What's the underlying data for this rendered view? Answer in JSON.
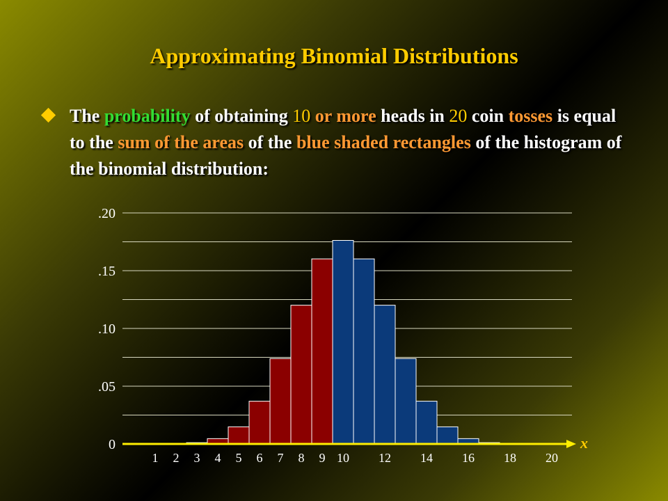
{
  "title": "Approximating Binomial Distributions",
  "bullet": [
    {
      "text": "The ",
      "style": "white"
    },
    {
      "text": "probability",
      "style": "green"
    },
    {
      "text": " of obtaining ",
      "style": "white"
    },
    {
      "text": "10",
      "style": "num"
    },
    {
      "text": " ",
      "style": "white"
    },
    {
      "text": "or more",
      "style": "orange"
    },
    {
      "text": " heads in ",
      "style": "white"
    },
    {
      "text": "20",
      "style": "num"
    },
    {
      "text": " coin ",
      "style": "white"
    },
    {
      "text": "tosses",
      "style": "orange"
    },
    {
      "text": " is equal to the ",
      "style": "white"
    },
    {
      "text": "sum of the areas",
      "style": "orange"
    },
    {
      "text": " of the ",
      "style": "white"
    },
    {
      "text": "blue shaded rectangles",
      "style": "orange"
    },
    {
      "text": " of the histogram of the binomial distribution:",
      "style": "white"
    }
  ],
  "colors": {
    "title": "#ffcc00",
    "grid": "#d8d8c0",
    "axis": "#ffee00",
    "bar_red": "#8b0000",
    "bar_blue": "#0b3a7a",
    "bar_edge": "#ffffff"
  },
  "chart_data": {
    "type": "bar",
    "title": "",
    "xlabel": "x",
    "ylabel": "",
    "ylim": [
      0,
      0.2
    ],
    "yticks": [
      ".20",
      ".15",
      ".10",
      ".05",
      "0"
    ],
    "ytick_values": [
      0.2,
      0.15,
      0.1,
      0.05,
      0
    ],
    "xtick_labels": [
      "1",
      "2",
      "3",
      "4",
      "5",
      "6",
      "7",
      "8",
      "9",
      "10",
      "12",
      "14",
      "16",
      "18",
      "20"
    ],
    "xtick_values": [
      1,
      2,
      3,
      4,
      5,
      6,
      7,
      8,
      9,
      10,
      12,
      14,
      16,
      18,
      20
    ],
    "x": [
      0,
      1,
      2,
      3,
      4,
      5,
      6,
      7,
      8,
      9,
      10,
      11,
      12,
      13,
      14,
      15,
      16,
      17,
      18,
      19,
      20
    ],
    "values": [
      0.0,
      0.0,
      0.0002,
      0.0011,
      0.0046,
      0.0148,
      0.037,
      0.0739,
      0.1201,
      0.1602,
      0.1762,
      0.1602,
      0.1201,
      0.0739,
      0.037,
      0.0148,
      0.0046,
      0.0011,
      0.0002,
      0.0,
      0.0
    ],
    "shaded_from_x": 10,
    "grid": true
  }
}
